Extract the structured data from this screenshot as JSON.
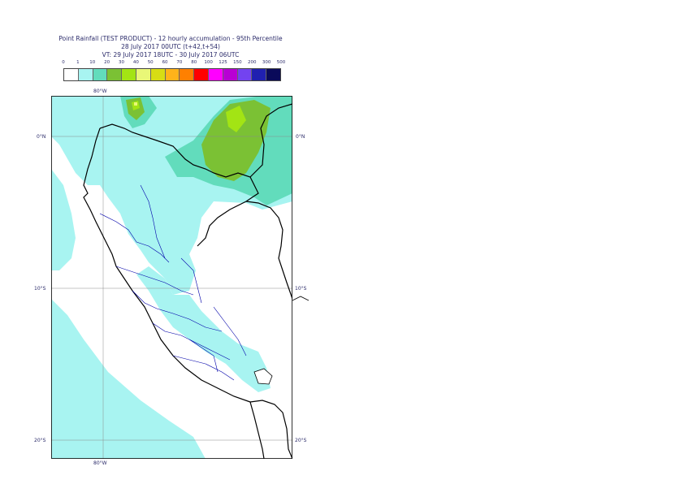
{
  "title": {
    "line1": "Point Rainfall (TEST PRODUCT) - 12 hourly accumulation - 95th Percentile",
    "line2": "28 July 2017 00UTC (t+42,t+54)",
    "line3": "VT: 29 July 2017 18UTC - 30 July 2017 06UTC"
  },
  "legend": {
    "ticks": [
      "0",
      "1",
      "10",
      "20",
      "30",
      "40",
      "50",
      "60",
      "70",
      "80",
      "100",
      "125",
      "150",
      "200",
      "300",
      "500"
    ],
    "colors": [
      "#ffffff",
      "#a8f4f1",
      "#62dcbc",
      "#7bc134",
      "#a3e414",
      "#e9f777",
      "#d7dd14",
      "#ffb31a",
      "#ff8000",
      "#ff0000",
      "#ff00ff",
      "#b800d4",
      "#7343f0",
      "#2020b0",
      "#0a0a5a"
    ]
  },
  "map": {
    "lon_label_top": "80°W",
    "lon_label_bottom": "80°W",
    "lat_labels": [
      "0°N",
      "10°S",
      "20°S"
    ],
    "colors": {
      "ocean_rain": "#a8f4f1",
      "rain_10_20": "#62dcbc",
      "rain_20_30": "#7bc134",
      "rain_30_40": "#a3e414",
      "rain_40_50": "#e9f777",
      "coast": "#000000",
      "borders": "#0000aa",
      "grid": "#8a8a8a"
    }
  }
}
